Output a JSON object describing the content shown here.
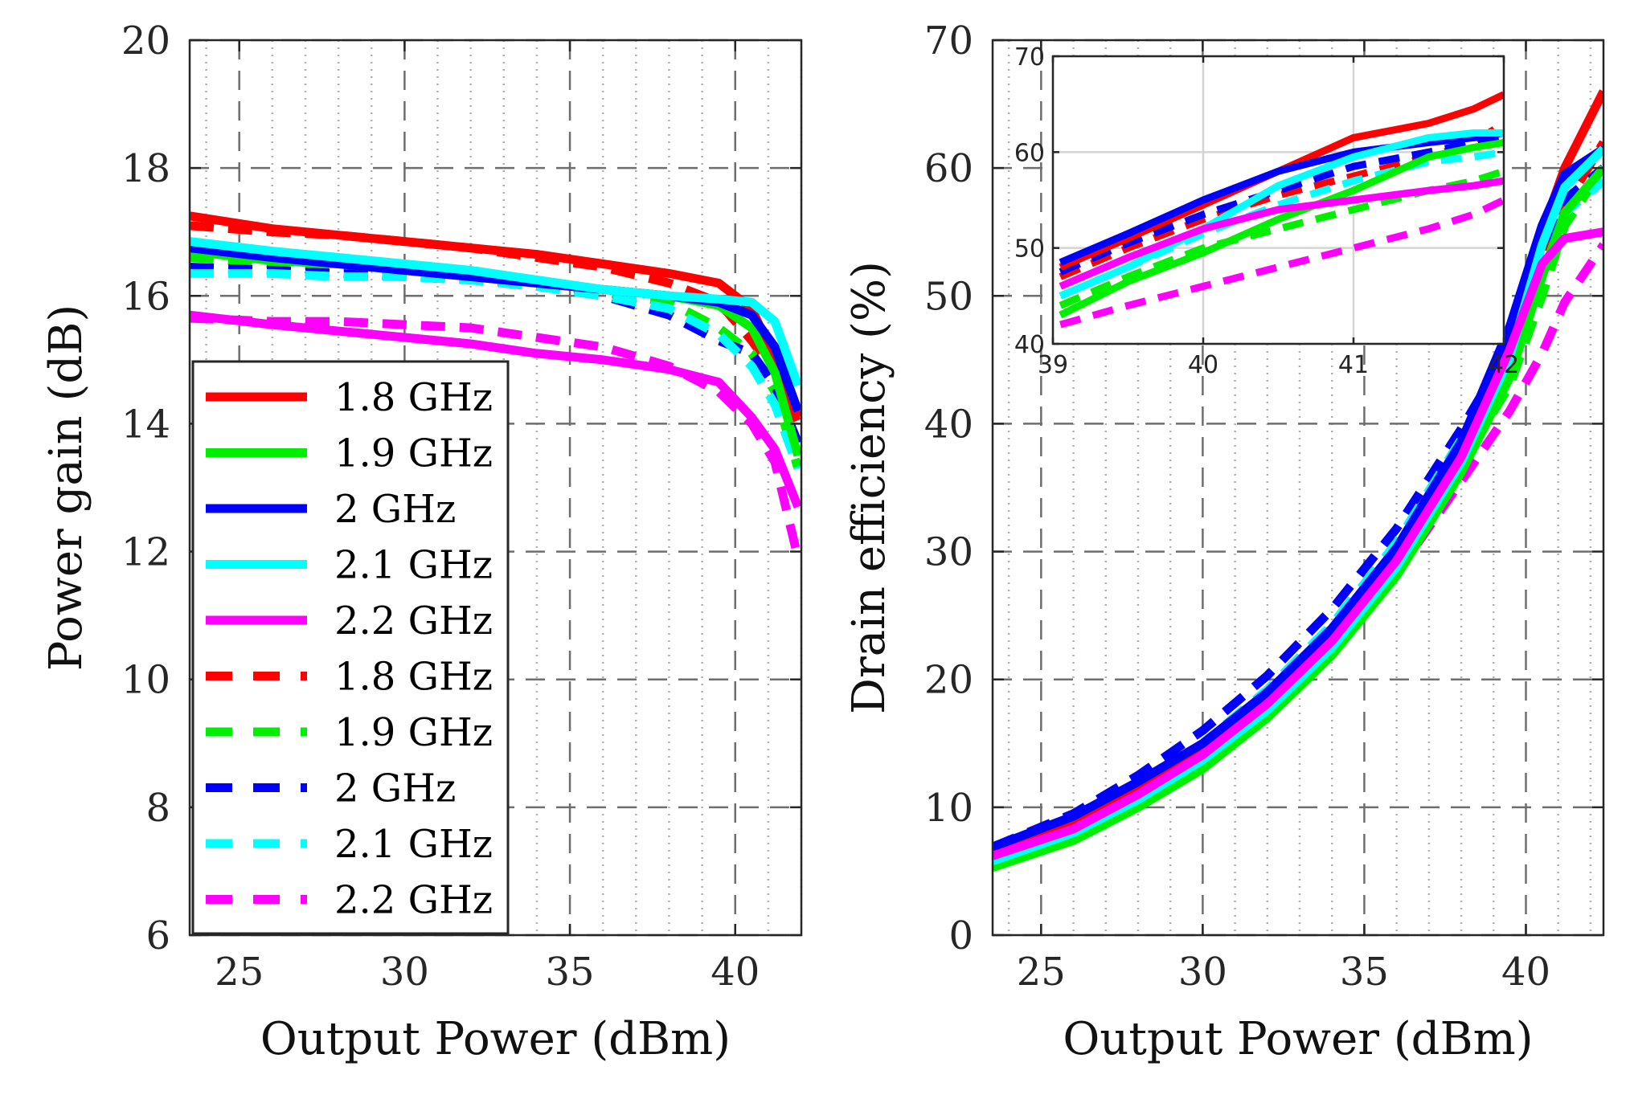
{
  "chart_data": [
    {
      "type": "line",
      "panel": "left",
      "xlabel": "Output Power (dBm)",
      "ylabel": "Power gain (dB)",
      "xlim": [
        23.5,
        42
      ],
      "ylim": [
        6,
        20
      ],
      "xticks": [
        25,
        30,
        35,
        40
      ],
      "yticks": [
        6,
        8,
        10,
        12,
        14,
        16,
        18,
        20
      ],
      "grid": "dashed major, dotted minor",
      "legend": {
        "placement": "lower-left",
        "entries": [
          {
            "label": "1.8 GHz",
            "color": "#ff0000",
            "style": "solid"
          },
          {
            "label": "1.9 GHz",
            "color": "#00ee00",
            "style": "solid"
          },
          {
            "label": "2 GHz",
            "color": "#0000ff",
            "style": "solid"
          },
          {
            "label": "2.1 GHz",
            "color": "#00ffff",
            "style": "solid"
          },
          {
            "label": "2.2 GHz",
            "color": "#ff00ff",
            "style": "solid"
          },
          {
            "label": "1.8 GHz",
            "color": "#ff0000",
            "style": "dashed"
          },
          {
            "label": "1.9 GHz",
            "color": "#00ee00",
            "style": "dashed"
          },
          {
            "label": "2 GHz",
            "color": "#0000ff",
            "style": "dashed"
          },
          {
            "label": "2.1 GHz",
            "color": "#00ffff",
            "style": "dashed"
          },
          {
            "label": "2.2 GHz",
            "color": "#ff00ff",
            "style": "dashed"
          }
        ]
      },
      "series": [
        {
          "name": "1.8 GHz",
          "style": "solid",
          "color": "#ff0000",
          "x": [
            23.5,
            26,
            28,
            30,
            32,
            34,
            36,
            38,
            39.5,
            40.5,
            41.2,
            41.9
          ],
          "y": [
            17.25,
            17.05,
            16.95,
            16.85,
            16.75,
            16.65,
            16.5,
            16.35,
            16.2,
            15.8,
            15.0,
            14.1
          ]
        },
        {
          "name": "1.9 GHz",
          "style": "solid",
          "color": "#00ee00",
          "x": [
            23.5,
            26,
            28,
            30,
            32,
            34,
            36,
            38,
            39.5,
            40.5,
            41.2,
            41.9
          ],
          "y": [
            16.7,
            16.55,
            16.5,
            16.4,
            16.3,
            16.2,
            16.1,
            16.0,
            15.85,
            15.5,
            14.8,
            13.5
          ]
        },
        {
          "name": "2 GHz",
          "style": "solid",
          "color": "#0000ff",
          "x": [
            23.5,
            26,
            28,
            30,
            32,
            34,
            36,
            38,
            39.5,
            40.5,
            41.2,
            41.9
          ],
          "y": [
            16.75,
            16.6,
            16.5,
            16.4,
            16.3,
            16.2,
            16.1,
            16.0,
            15.9,
            15.7,
            15.2,
            14.2
          ]
        },
        {
          "name": "2.1 GHz",
          "style": "solid",
          "color": "#00ffff",
          "x": [
            23.5,
            26,
            28,
            30,
            32,
            34,
            36,
            38,
            39.5,
            40.5,
            41.2,
            41.9
          ],
          "y": [
            16.85,
            16.7,
            16.6,
            16.5,
            16.4,
            16.25,
            16.1,
            16.0,
            15.95,
            15.9,
            15.6,
            14.6
          ]
        },
        {
          "name": "2.2 GHz",
          "style": "solid",
          "color": "#ff00ff",
          "x": [
            23.5,
            26,
            28,
            30,
            32,
            34,
            36,
            38,
            39.5,
            40.5,
            41.2,
            41.9
          ],
          "y": [
            15.7,
            15.55,
            15.45,
            15.35,
            15.25,
            15.1,
            15.0,
            14.85,
            14.65,
            14.1,
            13.6,
            12.7
          ]
        },
        {
          "name": "1.8 GHz",
          "style": "dashed",
          "color": "#ff0000",
          "x": [
            23.5,
            26,
            28,
            30,
            32,
            34,
            36,
            38,
            39.5,
            40.5,
            41.2,
            41.9
          ],
          "y": [
            17.1,
            17.0,
            16.95,
            16.85,
            16.75,
            16.6,
            16.45,
            16.2,
            15.9,
            15.3,
            14.8,
            14.0
          ]
        },
        {
          "name": "1.9 GHz",
          "style": "dashed",
          "color": "#00ee00",
          "x": [
            23.5,
            26,
            28,
            30,
            32,
            34,
            36,
            38,
            39.5,
            40.5,
            41.2,
            41.9
          ],
          "y": [
            16.6,
            16.5,
            16.45,
            16.4,
            16.3,
            16.2,
            16.05,
            15.9,
            15.5,
            15.1,
            14.5,
            13.3
          ]
        },
        {
          "name": "2 GHz",
          "style": "dashed",
          "color": "#0000ff",
          "x": [
            23.5,
            26,
            28,
            30,
            32,
            34,
            36,
            38,
            39.5,
            40.5,
            41.2,
            41.9
          ],
          "y": [
            16.45,
            16.4,
            16.35,
            16.3,
            16.25,
            16.15,
            16.0,
            15.7,
            15.3,
            15.1,
            14.6,
            13.7
          ]
        },
        {
          "name": "2.1 GHz",
          "style": "dashed",
          "color": "#00ffff",
          "x": [
            23.5,
            26,
            28,
            30,
            32,
            34,
            36,
            38,
            39.5,
            40.5,
            41.2,
            41.9
          ],
          "y": [
            16.35,
            16.35,
            16.3,
            16.3,
            16.25,
            16.15,
            16.0,
            15.8,
            15.4,
            14.9,
            14.3,
            13.3
          ]
        },
        {
          "name": "2.2 GHz",
          "style": "dashed",
          "color": "#ff00ff",
          "x": [
            23.5,
            26,
            28,
            30,
            32,
            34,
            36,
            38,
            39.5,
            40.5,
            41.2,
            41.9
          ],
          "y": [
            15.65,
            15.6,
            15.6,
            15.55,
            15.5,
            15.35,
            15.2,
            14.9,
            14.5,
            14.0,
            13.4,
            11.9
          ]
        }
      ]
    },
    {
      "type": "line",
      "panel": "right",
      "xlabel": "Output Power (dBm)",
      "ylabel": "Drain efficiency (%)",
      "xlim": [
        23.5,
        42.4
      ],
      "ylim": [
        0,
        70
      ],
      "xticks": [
        25,
        30,
        35,
        40
      ],
      "yticks": [
        0,
        10,
        20,
        30,
        40,
        50,
        60,
        70
      ],
      "grid": "dashed major, dotted minor",
      "series": [
        {
          "name": "1.8 GHz",
          "style": "solid",
          "color": "#ff0000",
          "x": [
            23.5,
            26,
            28,
            30,
            32,
            34,
            36,
            38,
            39.5,
            40.5,
            41.2,
            42.4
          ],
          "y": [
            6.8,
            9.0,
            11.6,
            14.6,
            18.6,
            23.5,
            29.8,
            38.0,
            47.0,
            55.0,
            60.0,
            66.0
          ]
        },
        {
          "name": "1.9 GHz",
          "style": "solid",
          "color": "#00ee00",
          "x": [
            23.5,
            26,
            28,
            30,
            32,
            34,
            36,
            38,
            39.5,
            40.5,
            41.2,
            42.4
          ],
          "y": [
            5.3,
            7.4,
            10.0,
            13.0,
            17.0,
            21.9,
            28.1,
            36.2,
            43.6,
            51.5,
            56.5,
            60.0
          ]
        },
        {
          "name": "2 GHz",
          "style": "solid",
          "color": "#0000ff",
          "x": [
            23.5,
            26,
            28,
            30,
            32,
            34,
            36,
            38,
            39.5,
            40.5,
            41.2,
            42.4
          ],
          "y": [
            6.9,
            9.3,
            12.0,
            15.0,
            19.0,
            24.0,
            30.3,
            38.6,
            47.6,
            55.5,
            59.5,
            61.5
          ]
        },
        {
          "name": "2.1 GHz",
          "style": "solid",
          "color": "#00ffff",
          "x": [
            23.5,
            26,
            28,
            30,
            32,
            34,
            36,
            38,
            39.5,
            40.5,
            41.2,
            42.4
          ],
          "y": [
            5.8,
            8.0,
            10.6,
            13.7,
            17.6,
            22.5,
            28.8,
            37.0,
            45.2,
            54.0,
            58.5,
            61.5
          ]
        },
        {
          "name": "2.2 GHz",
          "style": "solid",
          "color": "#ff00ff",
          "x": [
            23.5,
            26,
            28,
            30,
            32,
            34,
            36,
            38,
            39.5,
            40.5,
            41.2,
            42.4
          ],
          "y": [
            6.2,
            8.3,
            11.0,
            14.1,
            18.1,
            23.0,
            29.3,
            37.4,
            45.8,
            52.5,
            54.5,
            55.0
          ]
        },
        {
          "name": "1.8 GHz",
          "style": "dashed",
          "color": "#ff0000",
          "x": [
            23.5,
            26,
            28,
            30,
            32,
            34,
            36,
            38,
            39.5,
            40.5,
            41.2,
            42.4
          ],
          "y": [
            6.5,
            8.9,
            11.6,
            14.8,
            18.9,
            23.9,
            30.2,
            38.2,
            45.5,
            52.5,
            57.0,
            62.0
          ]
        },
        {
          "name": "1.9 GHz",
          "style": "dashed",
          "color": "#00ee00",
          "x": [
            23.5,
            26,
            28,
            30,
            32,
            34,
            36,
            38,
            39.5,
            40.5,
            41.2,
            42.4
          ],
          "y": [
            5.3,
            7.5,
            10.3,
            13.5,
            17.5,
            22.5,
            28.8,
            36.8,
            43.0,
            50.0,
            55.5,
            60.0
          ]
        },
        {
          "name": "2 GHz",
          "style": "dashed",
          "color": "#0000ff",
          "x": [
            23.5,
            26,
            28,
            30,
            32,
            34,
            36,
            38,
            39.5,
            40.5,
            41.2,
            42.4
          ],
          "y": [
            6.9,
            9.5,
            12.5,
            16.0,
            20.3,
            25.5,
            31.8,
            39.6,
            46.0,
            53.0,
            57.5,
            60.0
          ]
        },
        {
          "name": "2.1 GHz",
          "style": "dashed",
          "color": "#00ffff",
          "x": [
            23.5,
            26,
            28,
            30,
            32,
            34,
            36,
            38,
            39.5,
            40.5,
            41.2,
            42.4
          ],
          "y": [
            6.0,
            8.6,
            11.6,
            15.0,
            19.2,
            24.3,
            30.7,
            38.8,
            44.5,
            51.5,
            56.5,
            59.0
          ]
        },
        {
          "name": "2.2 GHz",
          "style": "dashed",
          "color": "#ff00ff",
          "x": [
            23.5,
            26,
            28,
            30,
            32,
            34,
            36,
            38,
            39.5,
            40.5,
            41.2,
            42.4
          ],
          "y": [
            5.7,
            8.2,
            10.9,
            14.0,
            17.9,
            22.6,
            28.3,
            35.5,
            41.0,
            45.5,
            49.5,
            54.0
          ]
        }
      ]
    },
    {
      "type": "line",
      "panel": "right-inset",
      "xlim": [
        39,
        42
      ],
      "ylim": [
        40,
        70
      ],
      "xticks": [
        39,
        40,
        41,
        42
      ],
      "yticks": [
        40,
        50,
        60,
        70
      ],
      "grid": "solid light gray",
      "series": [
        {
          "name": "1.8 GHz",
          "style": "solid",
          "color": "#ff0000",
          "x": [
            39.05,
            39.5,
            40.0,
            40.5,
            41.0,
            41.5,
            41.8,
            42.0
          ],
          "y": [
            48.0,
            51.0,
            54.5,
            58.0,
            61.5,
            63.0,
            64.5,
            66.0
          ]
        },
        {
          "name": "1.9 GHz",
          "style": "solid",
          "color": "#00ee00",
          "x": [
            39.05,
            39.5,
            40.0,
            40.5,
            41.0,
            41.5,
            41.8,
            42.0
          ],
          "y": [
            43.0,
            46.5,
            49.5,
            53.0,
            56.0,
            59.5,
            60.5,
            61.0
          ]
        },
        {
          "name": "2 GHz",
          "style": "solid",
          "color": "#0000ff",
          "x": [
            39.05,
            39.5,
            40.0,
            40.5,
            41.0,
            41.5,
            41.8,
            42.0
          ],
          "y": [
            48.5,
            51.5,
            55.0,
            58.0,
            60.0,
            61.0,
            61.5,
            62.0
          ]
        },
        {
          "name": "2.1 GHz",
          "style": "solid",
          "color": "#00ffff",
          "x": [
            39.05,
            39.5,
            40.0,
            40.5,
            41.0,
            41.5,
            41.8,
            42.0
          ],
          "y": [
            45.0,
            48.0,
            52.0,
            56.5,
            59.5,
            61.5,
            62.0,
            62.0
          ]
        },
        {
          "name": "2.2 GHz",
          "style": "solid",
          "color": "#ff00ff",
          "x": [
            39.05,
            39.5,
            40.0,
            40.5,
            41.0,
            41.5,
            41.8,
            42.0
          ],
          "y": [
            46.0,
            49.0,
            52.0,
            54.0,
            55.0,
            56.0,
            56.5,
            57.0
          ]
        },
        {
          "name": "1.8 GHz",
          "style": "dashed",
          "color": "#ff0000",
          "x": [
            39.05,
            39.5,
            40.0,
            40.5,
            41.0,
            41.5,
            41.8,
            42.0
          ],
          "y": [
            47.0,
            50.0,
            53.0,
            55.5,
            57.5,
            59.5,
            61.0,
            63.0
          ]
        },
        {
          "name": "1.9 GHz",
          "style": "dashed",
          "color": "#00ee00",
          "x": [
            39.05,
            39.5,
            40.0,
            40.5,
            41.0,
            41.5,
            41.8,
            42.0
          ],
          "y": [
            44.0,
            47.0,
            50.0,
            52.0,
            54.0,
            56.0,
            57.0,
            58.0
          ]
        },
        {
          "name": "2 GHz",
          "style": "dashed",
          "color": "#0000ff",
          "x": [
            39.05,
            39.5,
            40.0,
            40.5,
            41.0,
            41.5,
            41.8,
            42.0
          ],
          "y": [
            47.5,
            50.5,
            53.5,
            56.0,
            58.5,
            60.0,
            61.0,
            61.5
          ]
        },
        {
          "name": "2.1 GHz",
          "style": "dashed",
          "color": "#00ffff",
          "x": [
            39.05,
            39.5,
            40.0,
            40.5,
            41.0,
            41.5,
            41.8,
            42.0
          ],
          "y": [
            45.0,
            48.0,
            51.5,
            54.5,
            57.0,
            59.0,
            59.5,
            60.0
          ]
        },
        {
          "name": "2.2 GHz",
          "style": "dashed",
          "color": "#ff00ff",
          "x": [
            39.05,
            39.5,
            40.0,
            40.5,
            41.0,
            41.5,
            41.8,
            42.0
          ],
          "y": [
            42.0,
            44.0,
            46.0,
            48.0,
            50.0,
            52.0,
            53.5,
            55.0
          ]
        }
      ]
    }
  ]
}
